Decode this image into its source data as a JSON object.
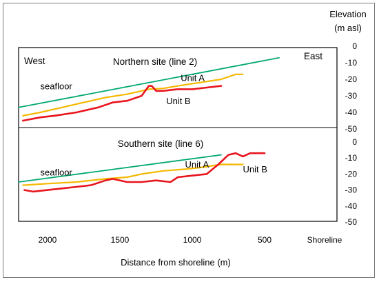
{
  "colors": {
    "seafloor": "#00a870",
    "unit_a": "#f5b800",
    "unit_b": "#e8151d",
    "frame": "#000000",
    "border": "#7a7a7a"
  },
  "chart_data": [
    {
      "type": "line",
      "panel": "top",
      "title": "Northern site (line 2)",
      "xlabel": "Distance from shoreline (m)",
      "ylabel": "Elevation (m asl)",
      "direction_labels": {
        "left": "West",
        "right": "East"
      },
      "xlim": [
        2200,
        0
      ],
      "ylim": [
        -50,
        0
      ],
      "y_ticks": [
        "0",
        "-10",
        "-20",
        "-30",
        "-40",
        "-50"
      ],
      "annotations": [
        {
          "text": "seafloor",
          "x": 2050,
          "y": -26
        },
        {
          "text": "Unit A",
          "x": 1080,
          "y": -21
        },
        {
          "text": "Unit B",
          "x": 1180,
          "y": -35
        }
      ],
      "series": [
        {
          "name": "seafloor",
          "color": "#00a870",
          "x": [
            2200,
            400
          ],
          "y": [
            -37,
            -7
          ]
        },
        {
          "name": "Unit A",
          "color": "#f5b800",
          "x": [
            2170,
            2050,
            1900,
            1750,
            1600,
            1450,
            1350,
            1300,
            1200,
            1100,
            950,
            800,
            700,
            650
          ],
          "y": [
            -42,
            -40,
            -37,
            -34,
            -31,
            -29,
            -27,
            -26,
            -25.5,
            -24,
            -22,
            -20,
            -17,
            -17
          ]
        },
        {
          "name": "Unit B",
          "color": "#e8151d",
          "x": [
            2170,
            2050,
            1950,
            1800,
            1650,
            1550,
            1450,
            1350,
            1300,
            1280,
            1250,
            1200,
            1100,
            1000,
            900,
            800
          ],
          "y": [
            -45,
            -43,
            -42,
            -40,
            -37,
            -34,
            -33,
            -30,
            -24,
            -24,
            -27,
            -27,
            -26,
            -26,
            -25,
            -24
          ]
        }
      ]
    },
    {
      "type": "line",
      "panel": "bottom",
      "title": "Southern site (line 6)",
      "xlabel": "Distance from shoreline (m)",
      "ylabel": "Elevation (m asl)",
      "xlim": [
        2200,
        0
      ],
      "ylim": [
        -50,
        0
      ],
      "x_ticks": [
        "2000",
        "1500",
        "1000",
        "500"
      ],
      "x_tick_values": [
        2000,
        1500,
        1000,
        500
      ],
      "x_end_label": "Shoreline",
      "y_ticks": [
        "0",
        "-10",
        "-20",
        "-30",
        "-40",
        "-50"
      ],
      "annotations": [
        {
          "text": "seafloor",
          "x": 2050,
          "y": -21
        },
        {
          "text": "Unit A",
          "x": 1050,
          "y": -16
        },
        {
          "text": "Unit B",
          "x": 650,
          "y": -19
        }
      ],
      "series": [
        {
          "name": "seafloor",
          "color": "#00a870",
          "x": [
            2200,
            800
          ],
          "y": [
            -25,
            -8
          ]
        },
        {
          "name": "Unit A",
          "color": "#f5b800",
          "x": [
            2170,
            2000,
            1800,
            1600,
            1450,
            1350,
            1200,
            1050,
            950,
            800,
            650
          ],
          "y": [
            -27,
            -26,
            -25,
            -23,
            -22,
            -20,
            -18,
            -17,
            -16,
            -14,
            -14
          ]
        },
        {
          "name": "Unit B",
          "color": "#e8151d",
          "x": [
            2160,
            2100,
            2000,
            1900,
            1800,
            1700,
            1600,
            1550,
            1450,
            1350,
            1250,
            1150,
            1100,
            1000,
            900,
            820,
            750,
            700,
            650,
            600,
            500
          ],
          "y": [
            -30,
            -31,
            -30,
            -29,
            -28,
            -27,
            -24,
            -23,
            -25,
            -25,
            -24,
            -25,
            -22,
            -21,
            -20,
            -14,
            -8,
            -7,
            -9,
            -7,
            -7
          ]
        }
      ]
    }
  ]
}
